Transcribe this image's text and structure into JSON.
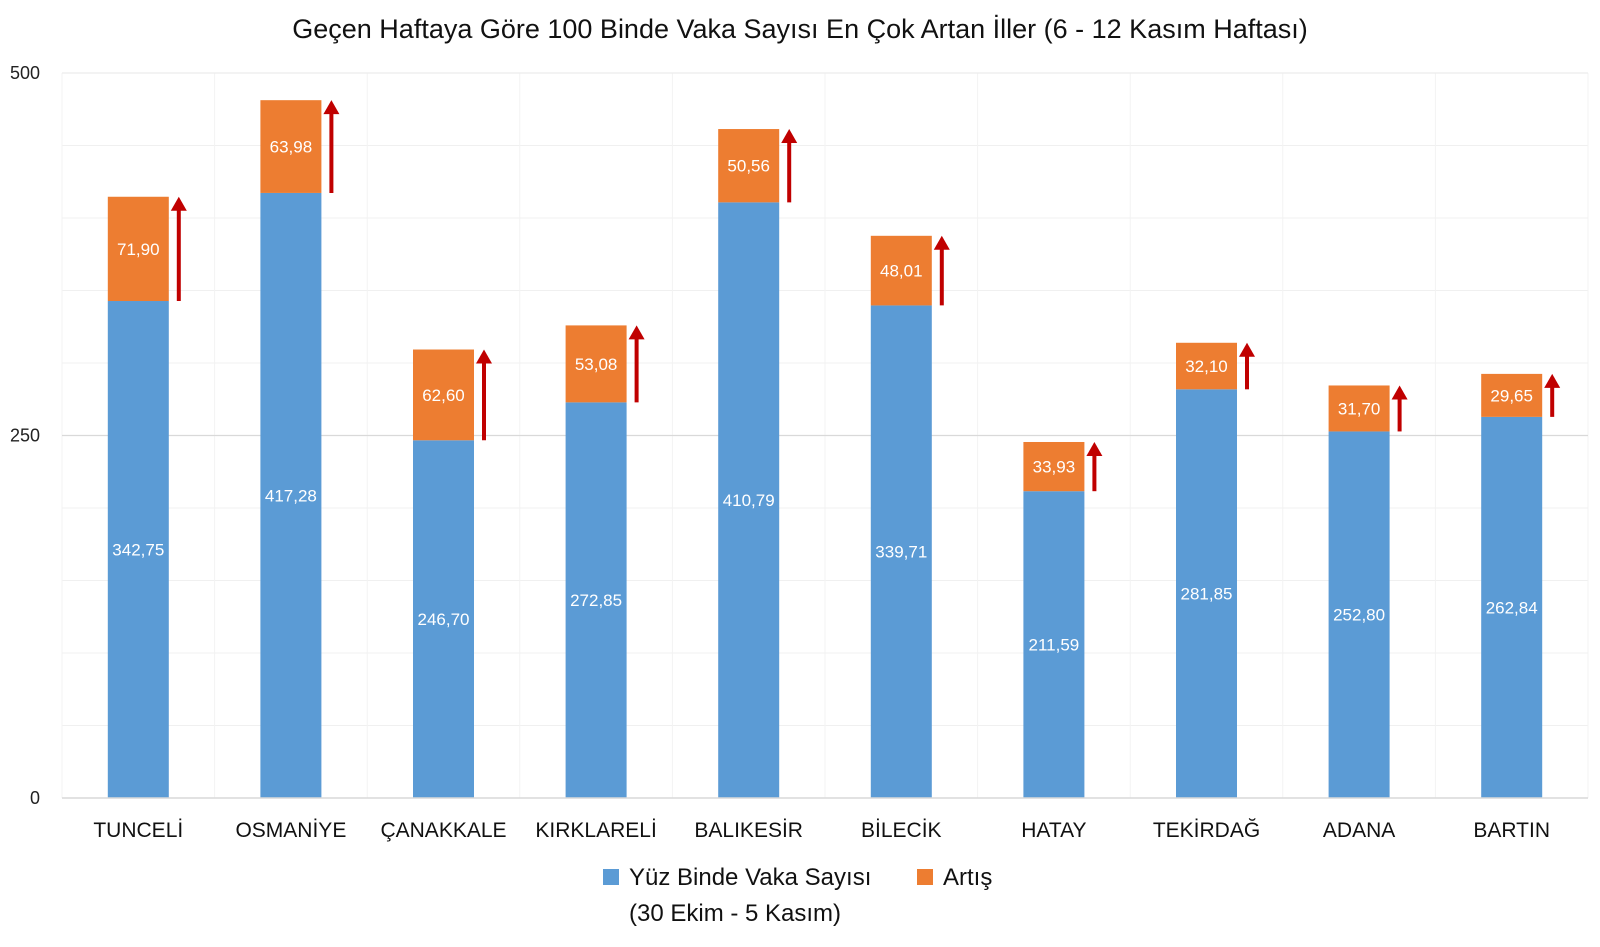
{
  "chart_data": {
    "type": "bar",
    "stacked": true,
    "title": "Geçen Haftaya Göre 100 Binde Vaka Sayısı En Çok Artan İller (6 - 12 Kasım Haftası)",
    "xlabel": "",
    "ylabel": "",
    "ylim": [
      0,
      500
    ],
    "yticks": [
      "0",
      "250",
      "500"
    ],
    "ytick_values": [
      0,
      250,
      500
    ],
    "grid": true,
    "legend_position": "bottom",
    "categories": [
      "TUNCELİ",
      "OSMANİYE",
      "ÇANAKKALE",
      "KIRKLARELİ",
      "BALIKESİR",
      "BİLECİK",
      "HATAY",
      "TEKİRDAĞ",
      "ADANA",
      "BARTIN"
    ],
    "series": [
      {
        "name": "Yüz Binde Vaka Sayısı",
        "name_line2": "(30 Ekim - 5 Kasım)",
        "color": "#5b9bd5",
        "values": [
          342.75,
          417.28,
          246.7,
          272.85,
          410.79,
          339.71,
          211.59,
          281.85,
          252.8,
          262.84
        ],
        "labels": [
          "342,75",
          "417,28",
          "246,70",
          "272,85",
          "410,79",
          "339,71",
          "211,59",
          "281,85",
          "252,80",
          "262,84"
        ]
      },
      {
        "name": "Artış",
        "color": "#ed7d31",
        "values": [
          71.9,
          63.98,
          62.6,
          53.08,
          50.56,
          48.01,
          33.93,
          32.1,
          31.7,
          29.65
        ],
        "labels": [
          "71,90",
          "63,98",
          "62,60",
          "53,08",
          "50,56",
          "48,01",
          "33,93",
          "32,10",
          "31,70",
          "29,65"
        ]
      }
    ],
    "arrow_color": "#c00000",
    "arrow_icon": "up-arrow-icon"
  }
}
